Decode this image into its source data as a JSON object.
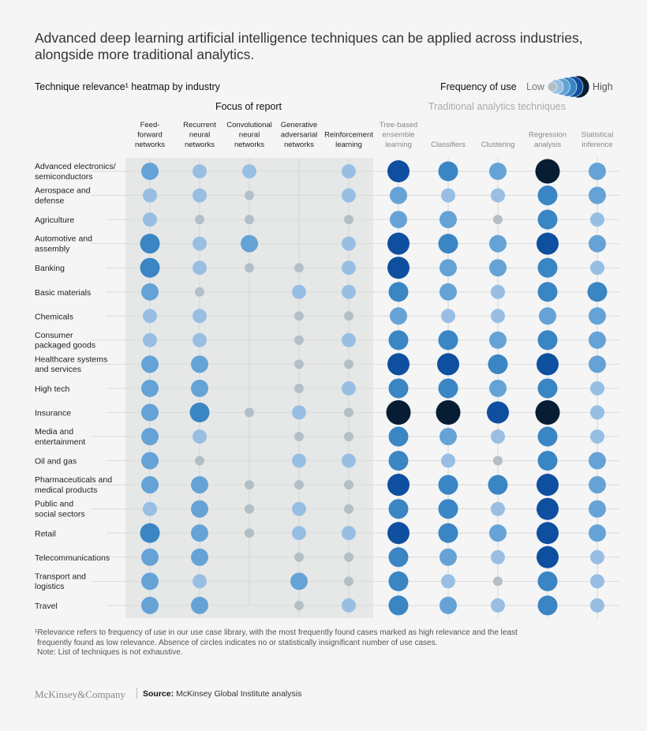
{
  "headline": "Advanced deep learning artificial intelligence techniques can be applied across industries, alongside more traditional analytics.",
  "legend": {
    "title": "Frequency of use",
    "low": "Low",
    "high": "High"
  },
  "chart_data": {
    "type": "heatmap",
    "title": "Technique relevance¹ heatmap by industry",
    "groups": [
      {
        "name": "Focus of report",
        "columns": [
          0,
          1,
          2,
          3,
          4
        ]
      },
      {
        "name": "Traditional analytics techniques",
        "columns": [
          5,
          6,
          7,
          8,
          9
        ]
      }
    ],
    "columns": [
      "Feed-\nforward\nnetworks",
      "Recurrent\nneural\nnetworks",
      "Convolutional\nneural\nnetworks",
      "Generative\nadversarial\nnetworks",
      "Reinforcement\nlearning",
      "Tree-based\nensemble\nlearning",
      "Classifiers",
      "Clustering",
      "Regression\nanalysis",
      "Statistical\ninference"
    ],
    "scale": "0 = no circle (none or insignificant), 1 = low ... 6 = high",
    "level_colors": [
      "",
      "#b3bfc6",
      "#98bfe3",
      "#65a3d6",
      "#3a85c4",
      "#0e4fa0",
      "#071d33"
    ],
    "rows": [
      {
        "industry": "Advanced electronics/\nsemiconductors",
        "values": [
          3,
          2,
          2,
          0,
          2,
          5,
          4,
          3,
          6,
          3
        ]
      },
      {
        "industry": "Aerospace and\ndefense",
        "values": [
          2,
          2,
          1,
          0,
          2,
          3,
          2,
          2,
          4,
          3
        ]
      },
      {
        "industry": "Agriculture",
        "values": [
          2,
          1,
          1,
          0,
          1,
          3,
          3,
          1,
          4,
          2
        ]
      },
      {
        "industry": "Automotive and\nassembly",
        "values": [
          4,
          2,
          3,
          0,
          2,
          5,
          4,
          3,
          5,
          3
        ]
      },
      {
        "industry": "Banking",
        "values": [
          4,
          2,
          1,
          1,
          2,
          5,
          3,
          3,
          4,
          2
        ]
      },
      {
        "industry": "Basic materials",
        "values": [
          3,
          1,
          0,
          2,
          2,
          4,
          3,
          2,
          4,
          4
        ]
      },
      {
        "industry": "Chemicals",
        "values": [
          2,
          2,
          0,
          1,
          1,
          3,
          2,
          2,
          3,
          3
        ]
      },
      {
        "industry": "Consumer\npackaged goods",
        "values": [
          2,
          2,
          0,
          1,
          2,
          4,
          4,
          3,
          4,
          3
        ]
      },
      {
        "industry": "Healthcare systems\nand services",
        "values": [
          3,
          3,
          0,
          1,
          1,
          5,
          5,
          4,
          5,
          3
        ]
      },
      {
        "industry": "High tech",
        "values": [
          3,
          3,
          0,
          1,
          2,
          4,
          4,
          3,
          4,
          2
        ]
      },
      {
        "industry": "Insurance",
        "values": [
          3,
          4,
          1,
          2,
          1,
          6,
          6,
          5,
          6,
          2
        ]
      },
      {
        "industry": "Media and\nentertainment",
        "values": [
          3,
          2,
          0,
          1,
          1,
          4,
          3,
          2,
          4,
          2
        ]
      },
      {
        "industry": "Oil and gas",
        "values": [
          3,
          1,
          0,
          2,
          2,
          4,
          2,
          1,
          4,
          3
        ]
      },
      {
        "industry": "Pharmaceuticals and\nmedical products",
        "values": [
          3,
          3,
          1,
          1,
          1,
          5,
          4,
          4,
          5,
          3
        ]
      },
      {
        "industry": "Public and\nsocial sectors",
        "values": [
          2,
          3,
          1,
          2,
          1,
          4,
          4,
          2,
          5,
          3
        ]
      },
      {
        "industry": "Retail",
        "values": [
          4,
          3,
          1,
          2,
          2,
          5,
          4,
          3,
          5,
          3
        ]
      },
      {
        "industry": "Telecommunications",
        "values": [
          3,
          3,
          0,
          1,
          1,
          4,
          3,
          2,
          5,
          2
        ]
      },
      {
        "industry": "Transport and\nlogistics",
        "values": [
          3,
          2,
          0,
          3,
          1,
          4,
          2,
          1,
          4,
          2
        ]
      },
      {
        "industry": "Travel",
        "values": [
          3,
          3,
          0,
          1,
          2,
          4,
          3,
          2,
          4,
          2
        ]
      }
    ]
  },
  "footnote": [
    "¹Relevance refers to frequency of use in our use case library, with the most frequently found cases marked as high relevance and the least",
    "frequently found as low relevance. Absence of circles indicates no or statistically insignificant number of use cases.",
    "Note: List of techniques is not exhaustive."
  ],
  "footer": {
    "logo": "McKinsey&Company",
    "source_label": "Source:",
    "source": "McKinsey Global Institute analysis"
  }
}
